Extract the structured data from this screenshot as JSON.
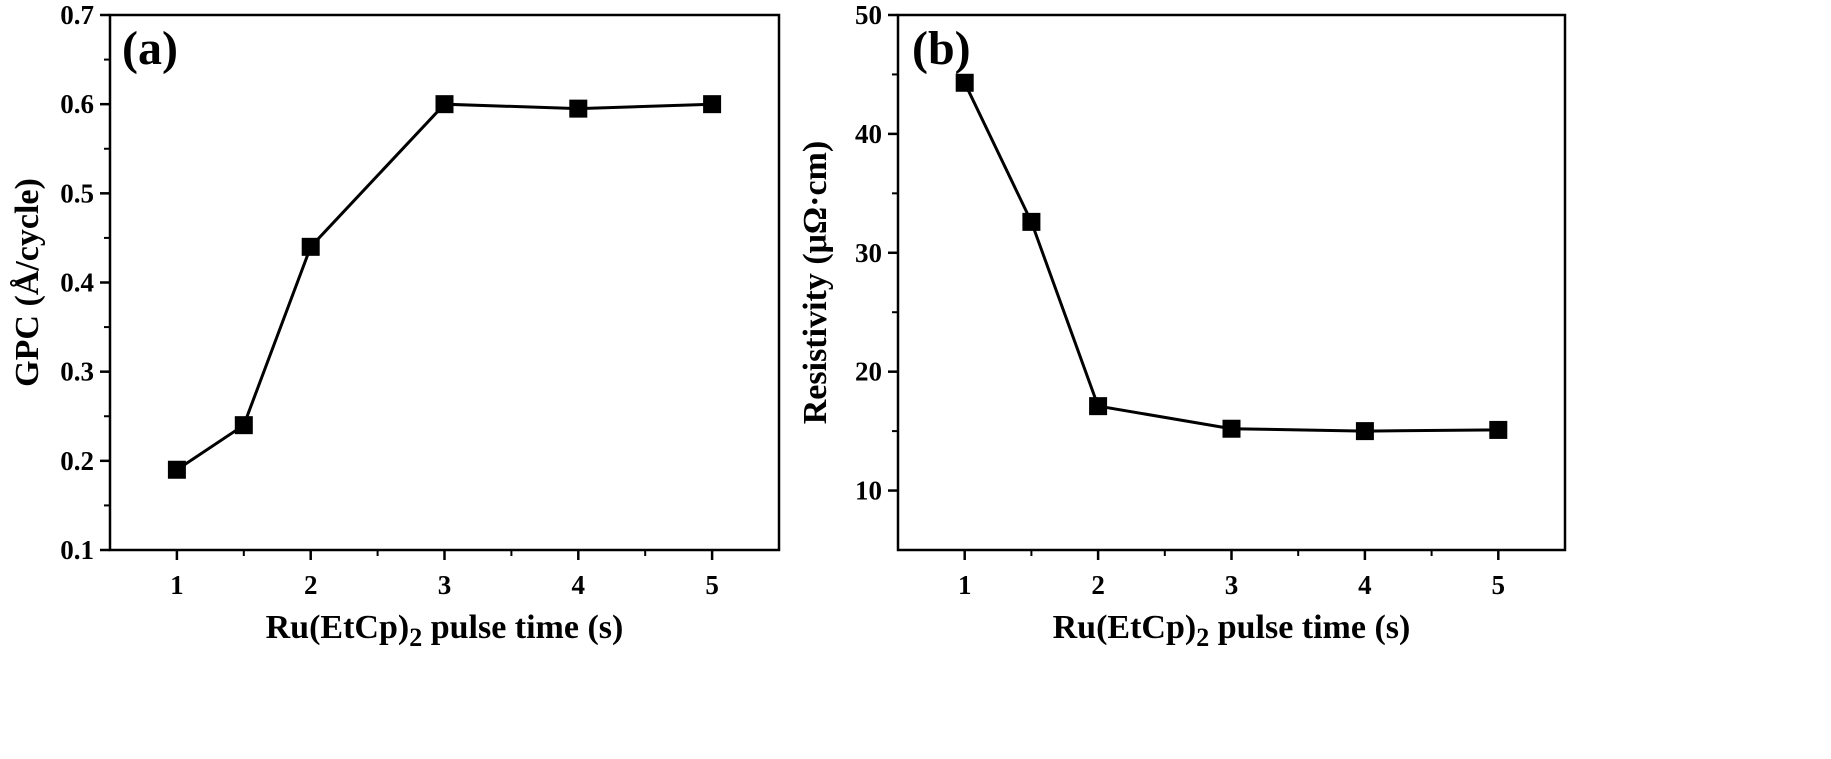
{
  "figure": {
    "background": "#ffffff",
    "ink_color": "#000000"
  },
  "chart_data": [
    {
      "type": "line",
      "panel_label": "(a)",
      "title": "",
      "xlabel": "Ru(EtCp)2 pulse time (s)",
      "xlabel_parts": {
        "main": "Ru(EtCp)",
        "subscript": "2",
        "rest": " pulse time (s)"
      },
      "ylabel": "GPC (Å/cycle)",
      "xlim": [
        0.5,
        5.5
      ],
      "ylim": [
        0.1,
        0.7
      ],
      "xticks": [
        1,
        2,
        3,
        4,
        5
      ],
      "xtick_labels": [
        "1",
        "2",
        "3",
        "4",
        "5"
      ],
      "yticks": [
        0.1,
        0.2,
        0.3,
        0.4,
        0.5,
        0.6,
        0.7
      ],
      "ytick_labels": [
        "0.1",
        "0.2",
        "0.3",
        "0.4",
        "0.5",
        "0.6",
        "0.7"
      ],
      "grid": false,
      "marker": "square",
      "series": [
        {
          "x": [
            1,
            1.5,
            2,
            3,
            4,
            5
          ],
          "y": [
            0.19,
            0.24,
            0.44,
            0.6,
            0.595,
            0.6
          ]
        }
      ]
    },
    {
      "type": "line",
      "panel_label": "(b)",
      "title": "",
      "xlabel": "Ru(EtCp)2 pulse time (s)",
      "xlabel_parts": {
        "main": "Ru(EtCp)",
        "subscript": "2",
        "rest": " pulse time (s)"
      },
      "ylabel": "Resistivity (μΩ·cm)",
      "xlim": [
        0.5,
        5.5
      ],
      "ylim": [
        5,
        50
      ],
      "xticks": [
        1,
        2,
        3,
        4,
        5
      ],
      "xtick_labels": [
        "1",
        "2",
        "3",
        "4",
        "5"
      ],
      "yticks": [
        10,
        20,
        30,
        40,
        50
      ],
      "ytick_labels": [
        "10",
        "20",
        "30",
        "40",
        "50"
      ],
      "grid": false,
      "marker": "square",
      "series": [
        {
          "x": [
            1,
            1.5,
            2,
            3,
            4,
            5
          ],
          "y": [
            44.3,
            32.6,
            17.1,
            15.2,
            15.0,
            15.1
          ]
        }
      ]
    }
  ]
}
